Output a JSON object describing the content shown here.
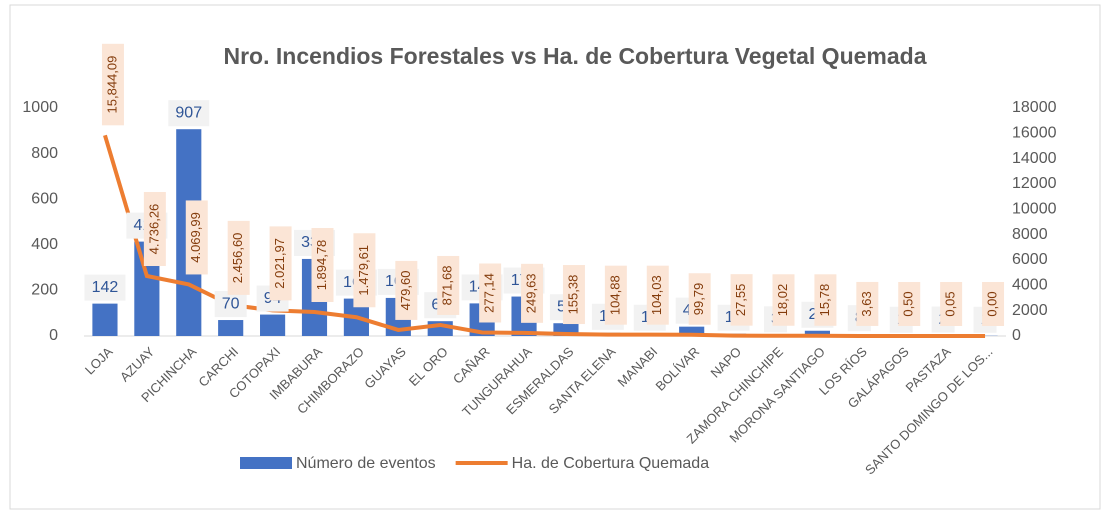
{
  "chart_data": {
    "type": "bar_line",
    "title": "Nro. Incendios Forestales vs Ha. de Cobertura Vegetal Quemada",
    "categories": [
      "LOJA",
      "AZUAY",
      "PICHINCHA",
      "CARCHI",
      "COTOPAXI",
      "IMBABURA",
      "CHIMBORAZO",
      "GUAYAS",
      "EL ORO",
      "CAÑAR",
      "TUNGURAHUA",
      "ESMERALDAS",
      "SANTA ELENA",
      "MANABI",
      "BOLÍVAR",
      "NAPO",
      "ZAMORA CHINCHIPE",
      "MORONA SANTIAGO",
      "LOS RÍOS",
      "GALÁPAGOS",
      "PASTAZA",
      "SANTO DOMINGO DE LOS..."
    ],
    "series": [
      {
        "name": "Número de eventos",
        "type": "bar",
        "color": "#4472c4",
        "axis": "y",
        "values": [
          142,
          414,
          907,
          70,
          94,
          338,
          164,
          167,
          65,
          143,
          173,
          56,
          14,
          10,
          41,
          10,
          3,
          23,
          8,
          1,
          2,
          1
        ]
      },
      {
        "name": "Ha. de Cobertura Quemada",
        "type": "line",
        "color": "#ed7d31",
        "axis": "y2",
        "values": [
          15844.09,
          4736.26,
          4069.99,
          2456.6,
          2021.97,
          1894.78,
          1479.61,
          479.6,
          871.68,
          277.14,
          249.63,
          155.38,
          104.88,
          104.03,
          99.79,
          27.55,
          18.02,
          15.78,
          3.63,
          0.5,
          0.05,
          0.0
        ],
        "value_labels": [
          "15,844,09",
          "4.736,26",
          "4.069,99",
          "2.456,60",
          "2.021,97",
          "1.894,78",
          "1.479,61",
          "479,60",
          "871,68",
          "277,14",
          "249,63",
          "155,38",
          "104,88",
          "104,03",
          "99,79",
          "27,55",
          "18,02",
          "15,78",
          "3,63",
          "0,50",
          "0,05",
          "0,00"
        ]
      }
    ],
    "ylim": [
      0,
      1000
    ],
    "yticks": [
      0,
      200,
      400,
      600,
      800,
      1000
    ],
    "y2lim": [
      0,
      18000
    ],
    "y2ticks": [
      0,
      2000,
      4000,
      6000,
      8000,
      10000,
      12000,
      14000,
      16000,
      18000
    ],
    "legend": "bottom"
  }
}
